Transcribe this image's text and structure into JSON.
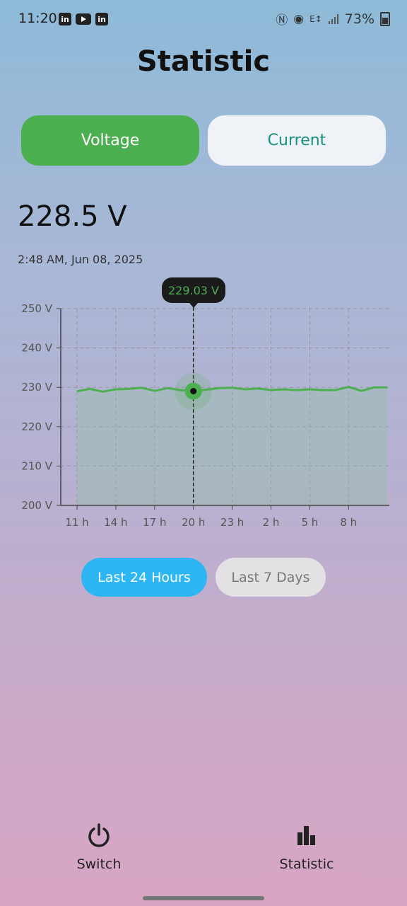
{
  "status_bar": {
    "time": "11:20",
    "app_icons": [
      "linkedin-icon",
      "youtube-icon",
      "linkedin-icon"
    ],
    "battery": "73%",
    "right_icons": [
      "nfc-icon",
      "hotspot-icon",
      "data-e-icon",
      "signal-icon",
      "battery-icon"
    ]
  },
  "header": {
    "title": "Statistic"
  },
  "toggle": {
    "voltage_label": "Voltage",
    "current_label": "Current",
    "active": "Voltage",
    "active_color": "#4caf50"
  },
  "reading": {
    "value": "228.5 V",
    "timestamp": "2:48 AM, Jun 08, 2025"
  },
  "tooltip": {
    "label": "229.03 V"
  },
  "chart_data": {
    "type": "line",
    "x_tick_labels": [
      "11 h",
      "14 h",
      "17 h",
      "20 h",
      "23 h",
      "2 h",
      "5 h",
      "8 h"
    ],
    "y_tick_labels": [
      "250 V",
      "240 V",
      "230 V",
      "220 V",
      "210 V",
      "200 V"
    ],
    "y_ticks": [
      250,
      240,
      230,
      220,
      210,
      200
    ],
    "ylim": [
      200,
      250
    ],
    "x_hours": [
      11,
      12,
      13,
      14,
      15,
      16,
      17,
      18,
      19,
      20,
      21,
      22,
      23,
      24,
      25,
      26,
      27,
      28,
      29,
      30,
      31,
      32,
      33,
      34,
      35
    ],
    "values": [
      229.0,
      229.6,
      228.9,
      229.5,
      229.6,
      229.9,
      229.1,
      229.8,
      229.3,
      229.03,
      229.4,
      229.8,
      229.9,
      229.5,
      229.7,
      229.3,
      229.5,
      229.3,
      229.5,
      229.3,
      229.3,
      230.1,
      229.1,
      230.0,
      230.0
    ],
    "selected_hour": 20,
    "selected_value": 229.03,
    "line_color": "#4caf50",
    "grid": true
  },
  "range_selector": {
    "options": [
      "Last 24 Hours",
      "Last 7 Days"
    ],
    "active": "Last 24 Hours",
    "active_color": "#2cb6f4"
  },
  "bottom_nav": {
    "switch_label": "Switch",
    "statistic_label": "Statistic"
  }
}
